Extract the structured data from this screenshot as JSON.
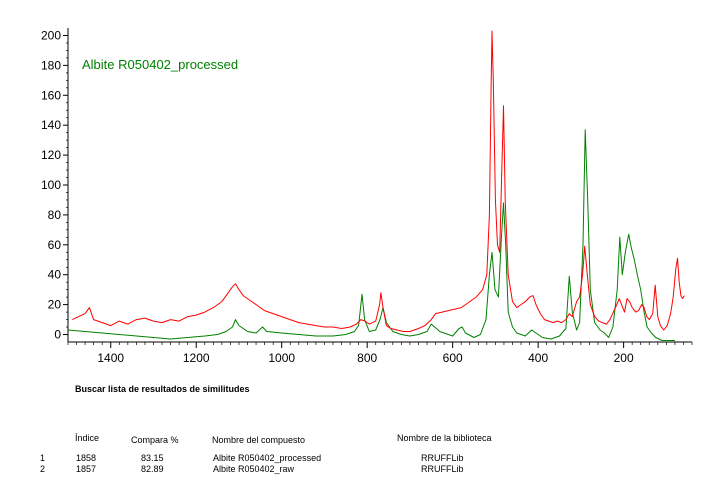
{
  "chart_data": {
    "type": "line",
    "title": "",
    "xlabel": "",
    "ylabel": "",
    "xlim": [
      1500,
      40
    ],
    "ylim": [
      -5,
      205
    ],
    "x_ticks": [
      1400,
      1200,
      1000,
      800,
      600,
      400,
      200
    ],
    "y_ticks": [
      0,
      20,
      40,
      60,
      80,
      100,
      120,
      140,
      160,
      180,
      200
    ],
    "grid": false,
    "legend": {
      "position": "top-left",
      "text": "Albite R050402_processed",
      "color": "#008000"
    },
    "series": [
      {
        "name": "Albite R050402_processed",
        "color": "#008000",
        "points": [
          [
            1500,
            3
          ],
          [
            1460,
            2
          ],
          [
            1420,
            1
          ],
          [
            1380,
            0
          ],
          [
            1340,
            -1
          ],
          [
            1300,
            -2
          ],
          [
            1260,
            -3
          ],
          [
            1220,
            -2
          ],
          [
            1180,
            -1
          ],
          [
            1150,
            0
          ],
          [
            1130,
            2
          ],
          [
            1115,
            5
          ],
          [
            1108,
            10
          ],
          [
            1100,
            6
          ],
          [
            1080,
            2
          ],
          [
            1060,
            1
          ],
          [
            1045,
            5
          ],
          [
            1035,
            2
          ],
          [
            1000,
            1
          ],
          [
            960,
            0
          ],
          [
            920,
            -1
          ],
          [
            880,
            -1
          ],
          [
            850,
            0
          ],
          [
            830,
            2
          ],
          [
            820,
            6
          ],
          [
            812,
            27
          ],
          [
            806,
            10
          ],
          [
            795,
            2
          ],
          [
            780,
            3
          ],
          [
            770,
            10
          ],
          [
            763,
            18
          ],
          [
            755,
            8
          ],
          [
            740,
            2
          ],
          [
            720,
            0
          ],
          [
            700,
            -1
          ],
          [
            680,
            0
          ],
          [
            660,
            2
          ],
          [
            650,
            7
          ],
          [
            642,
            5
          ],
          [
            630,
            2
          ],
          [
            600,
            -1
          ],
          [
            585,
            4
          ],
          [
            578,
            5
          ],
          [
            570,
            1
          ],
          [
            550,
            -2
          ],
          [
            535,
            0
          ],
          [
            522,
            10
          ],
          [
            514,
            40
          ],
          [
            508,
            55
          ],
          [
            501,
            30
          ],
          [
            493,
            25
          ],
          [
            486,
            65
          ],
          [
            481,
            88
          ],
          [
            476,
            60
          ],
          [
            470,
            15
          ],
          [
            460,
            5
          ],
          [
            450,
            1
          ],
          [
            430,
            -1
          ],
          [
            415,
            3
          ],
          [
            405,
            1
          ],
          [
            390,
            -2
          ],
          [
            370,
            -3
          ],
          [
            350,
            -1
          ],
          [
            335,
            4
          ],
          [
            327,
            39
          ],
          [
            320,
            15
          ],
          [
            310,
            3
          ],
          [
            303,
            8
          ],
          [
            295,
            60
          ],
          [
            290,
            137
          ],
          [
            284,
            90
          ],
          [
            278,
            30
          ],
          [
            268,
            8
          ],
          [
            255,
            3
          ],
          [
            245,
            1
          ],
          [
            235,
            -2
          ],
          [
            225,
            5
          ],
          [
            215,
            30
          ],
          [
            209,
            65
          ],
          [
            203,
            40
          ],
          [
            196,
            55
          ],
          [
            188,
            67
          ],
          [
            182,
            58
          ],
          [
            175,
            50
          ],
          [
            168,
            40
          ],
          [
            160,
            30
          ],
          [
            152,
            15
          ],
          [
            145,
            5
          ],
          [
            135,
            1
          ],
          [
            125,
            -2
          ],
          [
            110,
            -4
          ],
          [
            95,
            -4
          ],
          [
            80,
            -4
          ]
        ]
      },
      {
        "name": "Albite R050402_raw",
        "color": "#ff0000",
        "points": [
          [
            1490,
            10
          ],
          [
            1475,
            12
          ],
          [
            1460,
            14
          ],
          [
            1450,
            18
          ],
          [
            1440,
            10
          ],
          [
            1420,
            8
          ],
          [
            1400,
            6
          ],
          [
            1380,
            9
          ],
          [
            1360,
            7
          ],
          [
            1340,
            10
          ],
          [
            1320,
            11
          ],
          [
            1300,
            9
          ],
          [
            1280,
            8
          ],
          [
            1260,
            10
          ],
          [
            1240,
            9
          ],
          [
            1220,
            12
          ],
          [
            1200,
            13
          ],
          [
            1180,
            15
          ],
          [
            1160,
            18
          ],
          [
            1140,
            22
          ],
          [
            1125,
            28
          ],
          [
            1115,
            32
          ],
          [
            1108,
            34
          ],
          [
            1100,
            30
          ],
          [
            1090,
            26
          ],
          [
            1080,
            24
          ],
          [
            1070,
            22
          ],
          [
            1060,
            20
          ],
          [
            1050,
            18
          ],
          [
            1040,
            16
          ],
          [
            1030,
            15
          ],
          [
            1020,
            14
          ],
          [
            1000,
            12
          ],
          [
            980,
            10
          ],
          [
            960,
            8
          ],
          [
            940,
            7
          ],
          [
            920,
            6
          ],
          [
            900,
            5
          ],
          [
            880,
            5
          ],
          [
            860,
            4
          ],
          [
            840,
            5
          ],
          [
            825,
            7
          ],
          [
            815,
            10
          ],
          [
            805,
            9
          ],
          [
            795,
            7
          ],
          [
            780,
            9
          ],
          [
            771,
            20
          ],
          [
            768,
            28
          ],
          [
            763,
            18
          ],
          [
            755,
            6
          ],
          [
            745,
            4
          ],
          [
            730,
            3
          ],
          [
            715,
            2
          ],
          [
            700,
            2
          ],
          [
            690,
            3
          ],
          [
            680,
            4
          ],
          [
            665,
            6
          ],
          [
            650,
            10
          ],
          [
            640,
            14
          ],
          [
            625,
            15
          ],
          [
            610,
            16
          ],
          [
            595,
            17
          ],
          [
            580,
            18
          ],
          [
            570,
            20
          ],
          [
            560,
            22
          ],
          [
            545,
            25
          ],
          [
            530,
            30
          ],
          [
            520,
            40
          ],
          [
            514,
            80
          ],
          [
            510,
            165
          ],
          [
            508,
            203
          ],
          [
            505,
            170
          ],
          [
            500,
            90
          ],
          [
            495,
            60
          ],
          [
            490,
            55
          ],
          [
            485,
            110
          ],
          [
            481,
            153
          ],
          [
            477,
            90
          ],
          [
            470,
            40
          ],
          [
            460,
            22
          ],
          [
            450,
            18
          ],
          [
            440,
            20
          ],
          [
            430,
            22
          ],
          [
            420,
            25
          ],
          [
            412,
            26
          ],
          [
            405,
            20
          ],
          [
            395,
            14
          ],
          [
            385,
            10
          ],
          [
            375,
            9
          ],
          [
            365,
            8
          ],
          [
            355,
            9
          ],
          [
            345,
            8
          ],
          [
            335,
            10
          ],
          [
            327,
            14
          ],
          [
            320,
            12
          ],
          [
            310,
            22
          ],
          [
            303,
            25
          ],
          [
            296,
            40
          ],
          [
            291,
            59
          ],
          [
            285,
            40
          ],
          [
            278,
            20
          ],
          [
            268,
            12
          ],
          [
            258,
            9
          ],
          [
            250,
            8
          ],
          [
            240,
            7
          ],
          [
            232,
            10
          ],
          [
            224,
            15
          ],
          [
            216,
            20
          ],
          [
            210,
            24
          ],
          [
            205,
            20
          ],
          [
            198,
            15
          ],
          [
            192,
            24
          ],
          [
            186,
            22
          ],
          [
            180,
            18
          ],
          [
            172,
            15
          ],
          [
            165,
            16
          ],
          [
            158,
            20
          ],
          [
            152,
            18
          ],
          [
            146,
            12
          ],
          [
            140,
            10
          ],
          [
            132,
            14
          ],
          [
            126,
            33
          ],
          [
            120,
            12
          ],
          [
            114,
            6
          ],
          [
            106,
            3
          ],
          [
            98,
            6
          ],
          [
            90,
            14
          ],
          [
            84,
            25
          ],
          [
            78,
            44
          ],
          [
            74,
            51
          ],
          [
            70,
            35
          ],
          [
            66,
            26
          ],
          [
            62,
            24
          ],
          [
            58,
            26
          ]
        ]
      }
    ]
  },
  "results": {
    "title": "Buscar lista de resultados de similitudes",
    "headers": {
      "index": "Índice",
      "compare": "Compara %",
      "compound": "Nombre del compuesto",
      "library": "Nombre de la biblioteca"
    },
    "rows": [
      {
        "num": "1",
        "index": "1858",
        "compare": "83.15",
        "compound": "Albite R050402_processed",
        "library": "RRUFFLib"
      },
      {
        "num": "2",
        "index": "1857",
        "compare": "82.89",
        "compound": "Albite R050402_raw",
        "library": "RRUFFLib"
      }
    ]
  }
}
